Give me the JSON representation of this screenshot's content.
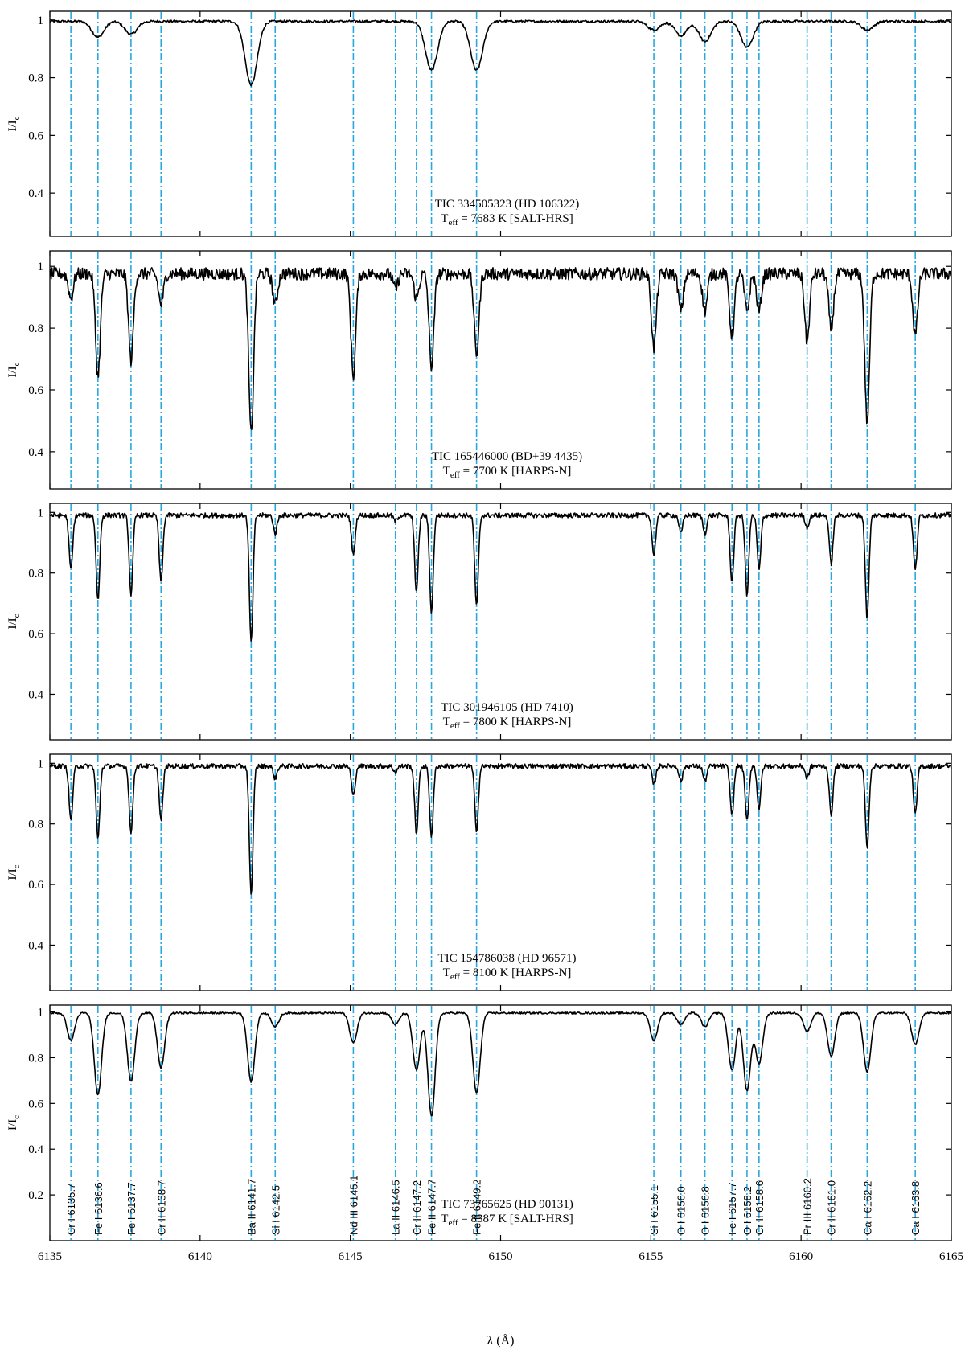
{
  "chart_data": {
    "type": "line",
    "xlabel": "λ (Å)",
    "xlim": [
      6135,
      6165
    ],
    "x_ticks": [
      6135,
      6140,
      6145,
      6150,
      6155,
      6160,
      6165
    ],
    "ylabel_main": "I/I",
    "ylabel_sub": "c",
    "line_color": "#29a8e0",
    "spectrum_color": "#000000",
    "grid": false,
    "lines": [
      {
        "label": "Cr I 6135.7",
        "x": 6135.7
      },
      {
        "label": "Fe I 6136.6",
        "x": 6136.6
      },
      {
        "label": "Fe I 6137.7",
        "x": 6137.7
      },
      {
        "label": "Cr II 6138.7",
        "x": 6138.7
      },
      {
        "label": "Ba II 6141.7",
        "x": 6141.7
      },
      {
        "label": "Si I 6142.5",
        "x": 6142.5
      },
      {
        "label": "Nd III 6145.1",
        "x": 6145.1
      },
      {
        "label": "La II 6146.5",
        "x": 6146.5
      },
      {
        "label": "Cr II 6147.2",
        "x": 6147.2
      },
      {
        "label": "Fe II 6147.7",
        "x": 6147.7
      },
      {
        "label": "Fe II 6149.2",
        "x": 6149.2
      },
      {
        "label": "Si I 6155.1",
        "x": 6155.1
      },
      {
        "label": "O I 6156.0",
        "x": 6156.0
      },
      {
        "label": "O I 6156.8",
        "x": 6156.8
      },
      {
        "label": "Fe I 6157.7",
        "x": 6157.7
      },
      {
        "label": "O I 6158.2",
        "x": 6158.2
      },
      {
        "label": "Cr II 6158.6",
        "x": 6158.6
      },
      {
        "label": "Pr III 6160.2",
        "x": 6160.2
      },
      {
        "label": "Cr II 6161.0",
        "x": 6161.0
      },
      {
        "label": "Ca I 6162.2",
        "x": 6162.2
      },
      {
        "label": "Ca I 6163.8",
        "x": 6163.8
      }
    ],
    "panels": [
      {
        "star": "TIC 334505323 (HD 106322)",
        "teff_prefix": "T",
        "teff_sub": "eff",
        "teff_text": " = 7683 K [SALT-HRS]",
        "ylim": [
          0.25,
          1.03
        ],
        "y_ticks": [
          0.4,
          0.6,
          0.8,
          1
        ],
        "noise": 0.004,
        "depths": [
          0,
          0.055,
          0.045,
          0,
          0.22,
          0,
          0,
          0,
          0,
          0.17,
          0.17,
          0.03,
          0.05,
          0.07,
          0,
          0.09,
          0,
          0,
          0,
          0.03,
          0
        ],
        "widths": [
          0.2,
          0.2,
          0.2,
          0.2,
          0.2,
          0.2,
          0.2,
          0.2,
          0.2,
          0.2,
          0.2,
          0.2,
          0.2,
          0.2,
          0.2,
          0.2,
          0.2,
          0.2,
          0.2,
          0.2,
          0.2
        ]
      },
      {
        "star": "TIC 165446000 (BD+39 4435)",
        "teff_prefix": "T",
        "teff_sub": "eff",
        "teff_text": " = 7700 K [HARPS-N]",
        "ylim": [
          0.28,
          1.05
        ],
        "y_ticks": [
          0.4,
          0.6,
          0.8,
          1
        ],
        "noise": 0.02,
        "depths": [
          0.08,
          0.33,
          0.28,
          0.1,
          0.52,
          0.1,
          0.33,
          0.05,
          0.08,
          0.3,
          0.26,
          0.24,
          0.12,
          0.12,
          0.2,
          0.12,
          0.12,
          0.22,
          0.18,
          0.48,
          0.2
        ],
        "widths": [
          0.08,
          0.08,
          0.08,
          0.08,
          0.08,
          0.08,
          0.08,
          0.08,
          0.08,
          0.08,
          0.08,
          0.08,
          0.08,
          0.08,
          0.08,
          0.08,
          0.08,
          0.08,
          0.08,
          0.08,
          0.08
        ]
      },
      {
        "star": "TIC 301946105 (HD 7410)",
        "teff_prefix": "T",
        "teff_sub": "eff",
        "teff_text": " = 7800 K [HARPS-N]",
        "ylim": [
          0.25,
          1.03
        ],
        "y_ticks": [
          0.4,
          0.6,
          0.8,
          1
        ],
        "noise": 0.008,
        "depths": [
          0.18,
          0.28,
          0.26,
          0.22,
          0.42,
          0.06,
          0.13,
          0.02,
          0.25,
          0.32,
          0.3,
          0.13,
          0.06,
          0.06,
          0.22,
          0.26,
          0.18,
          0.04,
          0.16,
          0.34,
          0.18
        ],
        "widths": [
          0.06,
          0.06,
          0.06,
          0.06,
          0.06,
          0.06,
          0.06,
          0.06,
          0.06,
          0.06,
          0.06,
          0.06,
          0.06,
          0.06,
          0.06,
          0.06,
          0.06,
          0.06,
          0.06,
          0.06,
          0.06
        ]
      },
      {
        "star": "TIC 154786038 (HD 96571)",
        "teff_prefix": "T",
        "teff_sub": "eff",
        "teff_text": " = 8100 K [HARPS-N]",
        "ylim": [
          0.25,
          1.03
        ],
        "y_ticks": [
          0.4,
          0.6,
          0.8,
          1
        ],
        "noise": 0.008,
        "depths": [
          0.18,
          0.24,
          0.22,
          0.18,
          0.43,
          0.04,
          0.1,
          0.02,
          0.22,
          0.23,
          0.21,
          0.06,
          0.05,
          0.05,
          0.16,
          0.18,
          0.14,
          0.04,
          0.16,
          0.27,
          0.16
        ],
        "widths": [
          0.06,
          0.06,
          0.06,
          0.06,
          0.06,
          0.06,
          0.06,
          0.06,
          0.06,
          0.06,
          0.06,
          0.06,
          0.06,
          0.06,
          0.06,
          0.06,
          0.06,
          0.06,
          0.06,
          0.06,
          0.06
        ]
      },
      {
        "star": "TIC 73765625 (HD 90131)",
        "teff_prefix": "T",
        "teff_sub": "eff",
        "teff_text": " = 8387 K [SALT-HRS]",
        "ylim": [
          0.0,
          1.03
        ],
        "y_ticks": [
          0.2,
          0.4,
          0.6,
          0.8,
          1
        ],
        "noise": 0.004,
        "depths": [
          0.12,
          0.36,
          0.3,
          0.24,
          0.3,
          0.06,
          0.13,
          0.05,
          0.25,
          0.45,
          0.35,
          0.12,
          0.05,
          0.06,
          0.25,
          0.34,
          0.22,
          0.08,
          0.19,
          0.26,
          0.14
        ],
        "widths": [
          0.12,
          0.12,
          0.12,
          0.12,
          0.12,
          0.12,
          0.12,
          0.12,
          0.12,
          0.12,
          0.12,
          0.12,
          0.12,
          0.12,
          0.12,
          0.12,
          0.12,
          0.12,
          0.12,
          0.12,
          0.12
        ]
      }
    ]
  }
}
